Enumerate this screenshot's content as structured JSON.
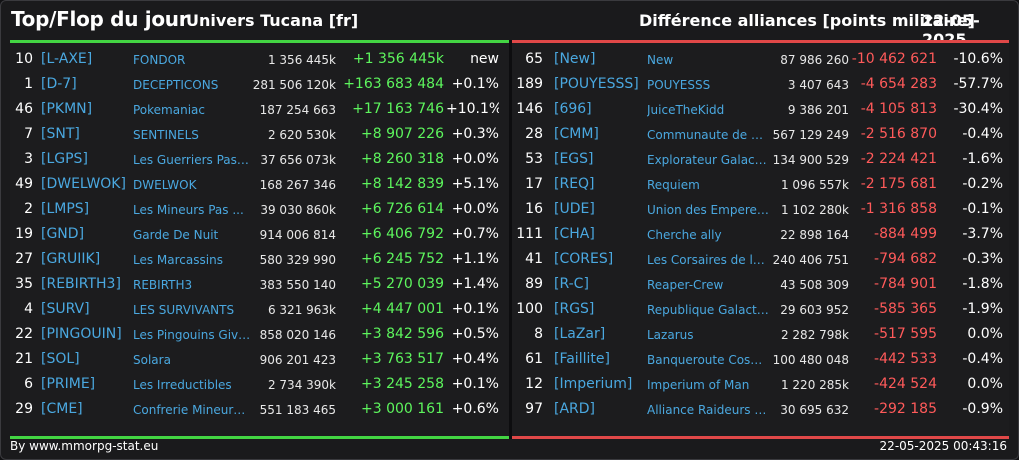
{
  "header": {
    "title": "Top/Flop du jour",
    "universe": "Univers Tucana [fr]",
    "subtitle": "Différence alliances [points militaire]",
    "date": "22-05-2025"
  },
  "colors": {
    "positive": "#5df55d",
    "negative": "#ff5a5a",
    "tag": "#4aa8e0",
    "top_bar": "#43d543",
    "flop_bar": "#e04848"
  },
  "top": [
    {
      "rank": "10",
      "tag": "[L-AXE]",
      "name": "FONDOR",
      "points": "1 356 445k",
      "delta": "+1 356 445k",
      "pct": "new"
    },
    {
      "rank": "1",
      "tag": "[D-7]",
      "name": "DECEPTICONS",
      "points": "281 506 120k",
      "delta": "+163 683 484",
      "pct": "+0.1%"
    },
    {
      "rank": "46",
      "tag": "[PKMN]",
      "name": "Pokemaniac",
      "points": "187 254 663",
      "delta": "+17 163 746",
      "pct": "+10.1%"
    },
    {
      "rank": "7",
      "tag": "[SNT]",
      "name": "SENTINELS",
      "points": "2 620 530k",
      "delta": "+8 907 226",
      "pct": "+0.3%"
    },
    {
      "rank": "3",
      "tag": "[LGPS]",
      "name": "Les Guerriers Pas ...",
      "points": "37 656 073k",
      "delta": "+8 260 318",
      "pct": "+0.0%"
    },
    {
      "rank": "49",
      "tag": "[DWELWOK]",
      "name": "DWELWOK",
      "points": "168 267 346",
      "delta": "+8 142 839",
      "pct": "+5.1%"
    },
    {
      "rank": "2",
      "tag": "[LMPS]",
      "name": "Les Mineurs Pas ...",
      "points": "39 030 860k",
      "delta": "+6 726 614",
      "pct": "+0.0%"
    },
    {
      "rank": "19",
      "tag": "[GND]",
      "name": "Garde De Nuit",
      "points": "914 006 814",
      "delta": "+6 406 792",
      "pct": "+0.7%"
    },
    {
      "rank": "27",
      "tag": "[GRUIIK]",
      "name": "Les Marcassins",
      "points": "580 329 990",
      "delta": "+6 245 752",
      "pct": "+1.1%"
    },
    {
      "rank": "35",
      "tag": "[REBIRTH3]",
      "name": "REBIRTH3",
      "points": "383 550 140",
      "delta": "+5 270 039",
      "pct": "+1.4%"
    },
    {
      "rank": "4",
      "tag": "[SURV]",
      "name": "LES SURVIVANTS",
      "points": "6 321 963k",
      "delta": "+4 447 001",
      "pct": "+0.1%"
    },
    {
      "rank": "22",
      "tag": "[PINGOUIN]",
      "name": "Les Pingouins Givre...",
      "points": "858 020 146",
      "delta": "+3 842 596",
      "pct": "+0.5%"
    },
    {
      "rank": "21",
      "tag": "[SOL]",
      "name": "Solara",
      "points": "906 201 423",
      "delta": "+3 763 517",
      "pct": "+0.4%"
    },
    {
      "rank": "6",
      "tag": "[PRIME]",
      "name": "Les Irreductibles",
      "points": "2 734 390k",
      "delta": "+3 245 258",
      "pct": "+0.1%"
    },
    {
      "rank": "29",
      "tag": "[CME]",
      "name": "Confrerie Mineurs ...",
      "points": "551 183 465",
      "delta": "+3 000 161",
      "pct": "+0.6%"
    }
  ],
  "flop": [
    {
      "rank": "65",
      "tag": "[New]",
      "name": "New",
      "points": "87 986 260",
      "delta": "-10 462 621",
      "pct": "-10.6%"
    },
    {
      "rank": "189",
      "tag": "[POUYESSS]",
      "name": "POUYESSS",
      "points": "3 407 643",
      "delta": "-4 654 283",
      "pct": "-57.7%"
    },
    {
      "rank": "146",
      "tag": "[696]",
      "name": "JuiceTheKidd",
      "points": "9 386 201",
      "delta": "-4 105 813",
      "pct": "-30.4%"
    },
    {
      "rank": "28",
      "tag": "[CMM]",
      "name": "Communaute de m...",
      "points": "567 129 249",
      "delta": "-2 516 870",
      "pct": "-0.4%"
    },
    {
      "rank": "53",
      "tag": "[EGS]",
      "name": "Explorateur Galacti...",
      "points": "134 900 529",
      "delta": "-2 224 421",
      "pct": "-1.6%"
    },
    {
      "rank": "17",
      "tag": "[REQ]",
      "name": "Requiem",
      "points": "1 096 557k",
      "delta": "-2 175 681",
      "pct": "-0.2%"
    },
    {
      "rank": "16",
      "tag": "[UDE]",
      "name": "Union des Empereurs",
      "points": "1 102 280k",
      "delta": "-1 316 858",
      "pct": "-0.1%"
    },
    {
      "rank": "111",
      "tag": "[CHA]",
      "name": "Cherche ally",
      "points": "22 898 164",
      "delta": "-884 499",
      "pct": "-3.7%"
    },
    {
      "rank": "41",
      "tag": "[CORES]",
      "name": "Les Corsaires de l_...",
      "points": "240 406 751",
      "delta": "-794 682",
      "pct": "-0.3%"
    },
    {
      "rank": "89",
      "tag": "[R-C]",
      "name": "Reaper-Crew",
      "points": "43 508 309",
      "delta": "-784 901",
      "pct": "-1.8%"
    },
    {
      "rank": "100",
      "tag": "[RGS]",
      "name": "Republique Galacti...",
      "points": "29 603 952",
      "delta": "-585 365",
      "pct": "-1.9%"
    },
    {
      "rank": "8",
      "tag": "[LaZar]",
      "name": "Lazarus",
      "points": "2 282 798k",
      "delta": "-517 595",
      "pct": "0.0%"
    },
    {
      "rank": "61",
      "tag": "[Faillite]",
      "name": "Banqueroute Cosm...",
      "points": "100 480 048",
      "delta": "-442 533",
      "pct": "-0.4%"
    },
    {
      "rank": "12",
      "tag": "[Imperium]",
      "name": "Imperium of Man",
      "points": "1 220 285k",
      "delta": "-424 524",
      "pct": "0.0%"
    },
    {
      "rank": "97",
      "tag": "[ARD]",
      "name": "Alliance Raideurs et...",
      "points": "30 695 632",
      "delta": "-292 185",
      "pct": "-0.9%"
    }
  ],
  "footer": {
    "credit": "By www.mmorpg-stat.eu",
    "timestamp": "22-05-2025 00:43:16"
  }
}
